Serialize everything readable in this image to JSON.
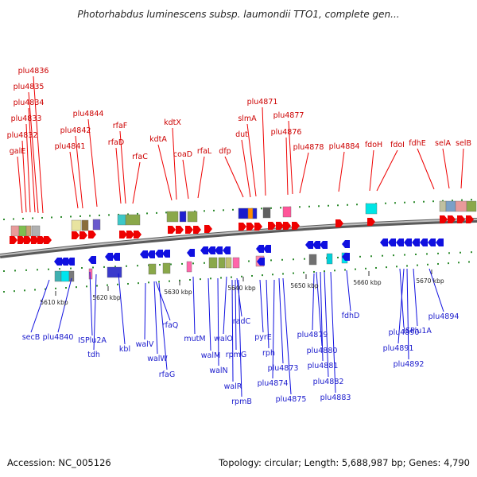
{
  "title": "Photorhabdus luminescens subsp. laumondii TTO1, complete gen...",
  "footer": {
    "accession": "Accession: NC_005126",
    "summary": "Topology: circular; Length: 5,688,987 bp; Genes: 4,790"
  },
  "colors": {
    "forward": "#ee0000",
    "reverse": "#1010e0",
    "backbone": "#8a8a8a",
    "dots": "#2e8b2e"
  },
  "ticks": [
    "5610 kbp",
    "5620 kbp",
    "5630 kbp",
    "5640 kbp",
    "5650 kbp",
    "5660 kbp",
    "5670 kbp"
  ],
  "top_genes": [
    "galE",
    "plu4832",
    "plu4833",
    "plu4834",
    "plu4835",
    "plu4836",
    "plu4841",
    "plu4842",
    "plu4844",
    "rfaF",
    "rfaD",
    "rfaC",
    "kdtA",
    "kdtX",
    "coaD",
    "rfaL",
    "dfp",
    "dut",
    "slmA",
    "plu4871",
    "plu4876",
    "plu4877",
    "plu4878",
    "plu4884",
    "fdoH",
    "fdoI",
    "fdhE",
    "selA",
    "selB"
  ],
  "bottom_genes": [
    "secB",
    "plu4840",
    "ISPlu2A",
    "tdh",
    "kbl",
    "walV",
    "walW",
    "rfaQ",
    "rfaG",
    "mutM",
    "walM",
    "walN",
    "walO",
    "walR",
    "rpmG",
    "rpmB",
    "radC",
    "pyrE",
    "rph",
    "plu4873",
    "plu4874",
    "plu4875",
    "plu4879",
    "plu4880",
    "plu4881",
    "plu4882",
    "plu4883",
    "fdhD",
    "plu4890",
    "plu4891",
    "plu4892",
    "ISPlu1A",
    "plu4894"
  ]
}
